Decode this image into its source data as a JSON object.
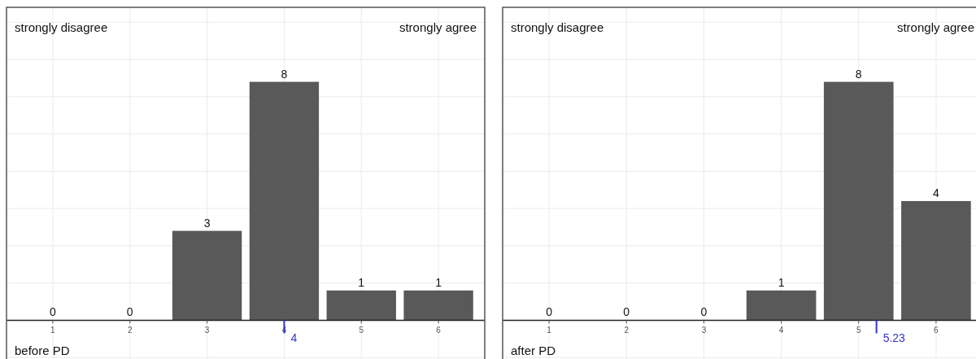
{
  "chart_data": [
    {
      "type": "bar",
      "x": [
        1,
        2,
        3,
        4,
        5,
        6
      ],
      "values": [
        0,
        0,
        3,
        8,
        1,
        1
      ],
      "color": "#595959",
      "data_labels": true,
      "xlim": [
        0.4,
        6.6
      ],
      "xticks": [
        1,
        2,
        3,
        4,
        5,
        6
      ],
      "ylim": [
        -1.3,
        10.5
      ],
      "yticks": [
        {
          "value": -1.25,
          "label": null
        },
        {
          "value": 1.25,
          "label": null
        },
        {
          "value": 2.5,
          "label": null
        },
        {
          "value": 3.75,
          "label": null
        },
        {
          "value": 5,
          "label": null
        },
        {
          "value": 6.25,
          "label": null
        },
        {
          "value": 7.5,
          "label": null
        },
        {
          "value": 8.75,
          "label": null
        },
        {
          "value": 10,
          "label": null
        }
      ],
      "tick_labels": "x",
      "grid": true,
      "ref_lines": [
        {
          "axis": "x",
          "value": 4,
          "label": "4",
          "color": "#3333cc"
        }
      ],
      "annotations": [
        "strongly disagree",
        "strongly agree",
        "before PD"
      ]
    },
    {
      "type": "bar",
      "x": [
        1,
        2,
        3,
        4,
        5,
        6
      ],
      "values": [
        0,
        0,
        0,
        1,
        8,
        4
      ],
      "color": "#595959",
      "data_labels": true,
      "xlim": [
        0.4,
        6.6
      ],
      "xticks": [
        1,
        2,
        3,
        4,
        5,
        6
      ],
      "ylim": [
        -1.3,
        10.5
      ],
      "yticks": [
        {
          "value": -1.25,
          "label": null
        },
        {
          "value": 1.25,
          "label": null
        },
        {
          "value": 2.5,
          "label": null
        },
        {
          "value": 3.75,
          "label": null
        },
        {
          "value": 5,
          "label": null
        },
        {
          "value": 6.25,
          "label": null
        },
        {
          "value": 7.5,
          "label": null
        },
        {
          "value": 8.75,
          "label": null
        },
        {
          "value": 10,
          "label": null
        }
      ],
      "tick_labels": "x",
      "grid": true,
      "ref_lines": [
        {
          "axis": "x",
          "value": 5.23,
          "label": "5.23",
          "color": "#3333cc"
        }
      ],
      "annotations": [
        "strongly disagree",
        "strongly agree",
        "after PD"
      ]
    }
  ]
}
